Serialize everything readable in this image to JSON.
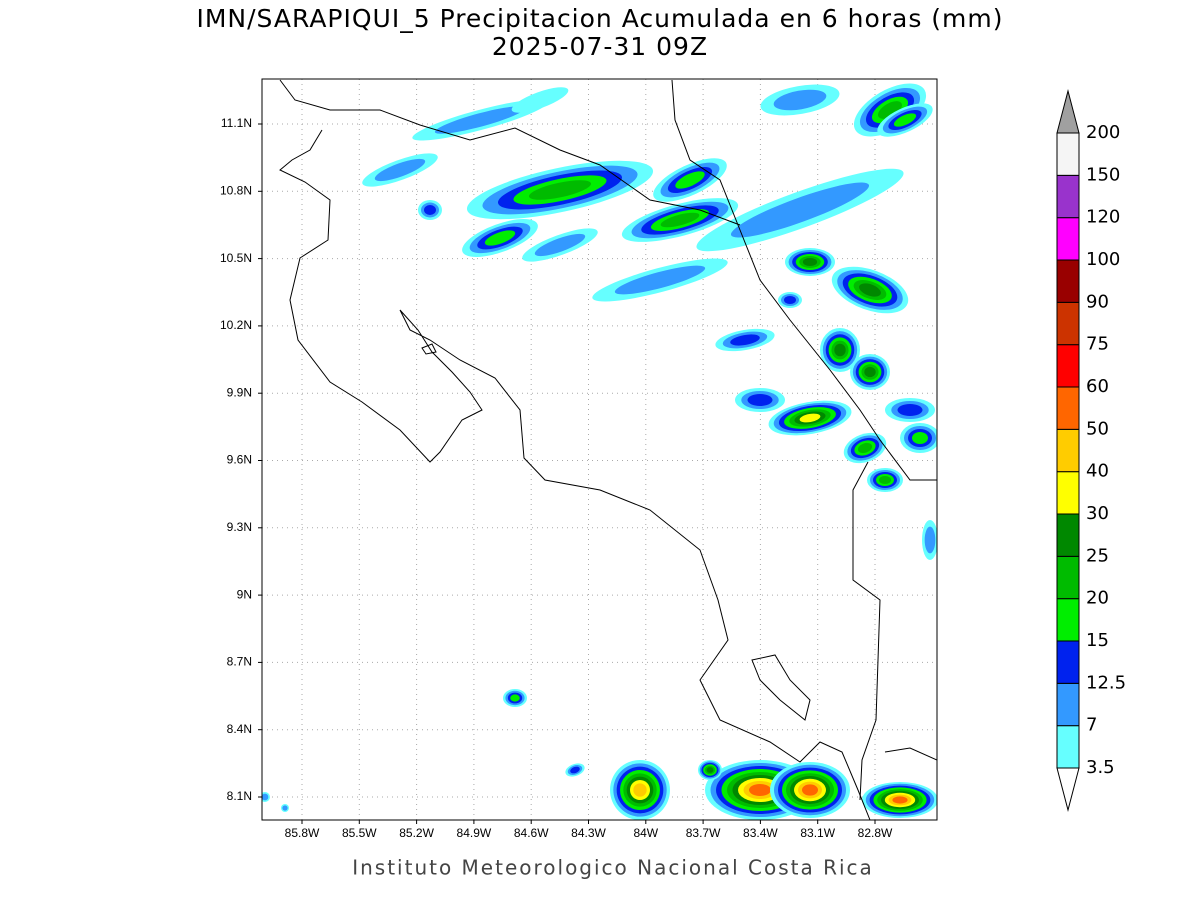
{
  "title": "IMN/SARAPIQUI_5 Precipitacion Acumulada en 6 horas (mm)",
  "subtitle": "2025-07-31 09Z",
  "map": {
    "lat_labels": [
      "11.1N",
      "10.8N",
      "10.5N",
      "10.2N",
      "9.9N",
      "9.6N",
      "9.3N",
      "9N",
      "8.7N",
      "8.4N",
      "8.1N"
    ],
    "lon_labels": [
      "85.8W",
      "85.5W",
      "85.2W",
      "84.9W",
      "84.6W",
      "84.3W",
      "84W",
      "83.7W",
      "83.4W",
      "83.1W",
      "82.8W"
    ]
  },
  "colorbar": {
    "levels": [
      3.5,
      7,
      12.5,
      15,
      20,
      25,
      30,
      40,
      50,
      60,
      75,
      90,
      100,
      120,
      150,
      200
    ],
    "colors": [
      "#66ffff",
      "#3399ff",
      "#0022ee",
      "#00ee00",
      "#00bb00",
      "#008800",
      "#ffff00",
      "#ffcc00",
      "#ff6600",
      "#ff0000",
      "#cc3300",
      "#990000",
      "#ff00ff",
      "#9933cc",
      "#f5f5f5"
    ],
    "under_color": "#ffffff",
    "over_color": "#a0a0a0"
  },
  "footer": "Instituto Meteorologico Nacional Costa Rica"
}
